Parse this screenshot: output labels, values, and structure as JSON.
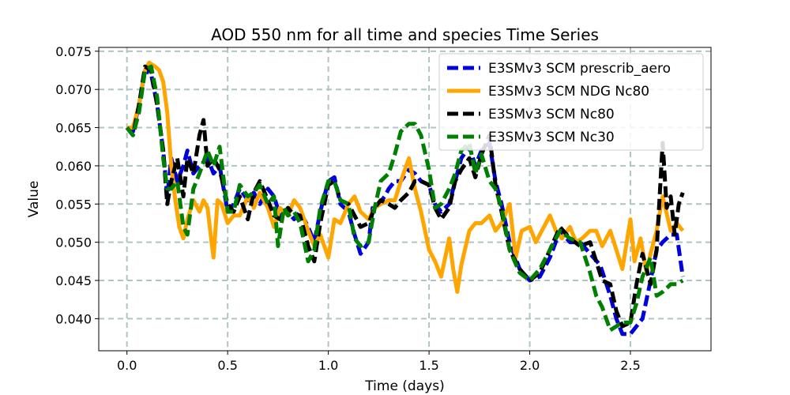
{
  "chart_data": {
    "type": "line",
    "title": "AOD 550 nm for all time and species Time Series",
    "xlabel": "Time (days)",
    "ylabel": "Value",
    "xlim": [
      -0.14,
      2.9
    ],
    "ylim": [
      0.0358,
      0.0755
    ],
    "xticks": [
      0.0,
      0.5,
      1.0,
      1.5,
      2.0,
      2.5
    ],
    "xtick_labels": [
      "0.0",
      "0.5",
      "1.0",
      "1.5",
      "2.0",
      "2.5"
    ],
    "yticks": [
      0.04,
      0.045,
      0.05,
      0.055,
      0.06,
      0.065,
      0.07,
      0.075
    ],
    "ytick_labels": [
      "0.040",
      "0.045",
      "0.050",
      "0.055",
      "0.060",
      "0.065",
      "0.070",
      "0.075"
    ],
    "grid": true,
    "legend_position": "top-right",
    "series": [
      {
        "name": "E3SMv3 SCM prescrib_aero",
        "color": "#0000dd",
        "dashed": true,
        "x": [
          0.0,
          0.03,
          0.06,
          0.09,
          0.12,
          0.15,
          0.18,
          0.2,
          0.22,
          0.25,
          0.28,
          0.3,
          0.33,
          0.36,
          0.4,
          0.43,
          0.46,
          0.5,
          0.53,
          0.56,
          0.6,
          0.63,
          0.66,
          0.7,
          0.73,
          0.76,
          0.8,
          0.83,
          0.86,
          0.9,
          0.93,
          0.96,
          1.0,
          1.03,
          1.06,
          1.1,
          1.13,
          1.16,
          1.2,
          1.22,
          1.25,
          1.28,
          1.3,
          1.33,
          1.36,
          1.4,
          1.43,
          1.46,
          1.5,
          1.53,
          1.56,
          1.6,
          1.63,
          1.66,
          1.7,
          1.73,
          1.76,
          1.8,
          1.83,
          1.86,
          1.9,
          1.95,
          2.0,
          2.05,
          2.1,
          2.15,
          2.2,
          2.25,
          2.3,
          2.35,
          2.4,
          2.43,
          2.46,
          2.5,
          2.53,
          2.56,
          2.6,
          2.63,
          2.66,
          2.7,
          2.73,
          2.76
        ],
        "y": [
          0.065,
          0.0645,
          0.068,
          0.0725,
          0.072,
          0.068,
          0.062,
          0.056,
          0.061,
          0.058,
          0.06,
          0.062,
          0.059,
          0.06,
          0.061,
          0.059,
          0.06,
          0.054,
          0.055,
          0.057,
          0.0555,
          0.0565,
          0.055,
          0.057,
          0.056,
          0.0535,
          0.054,
          0.053,
          0.054,
          0.052,
          0.05,
          0.054,
          0.058,
          0.0585,
          0.055,
          0.054,
          0.051,
          0.0485,
          0.05,
          0.0545,
          0.055,
          0.056,
          0.057,
          0.058,
          0.058,
          0.0595,
          0.059,
          0.058,
          0.0575,
          0.055,
          0.054,
          0.055,
          0.058,
          0.061,
          0.0625,
          0.06,
          0.062,
          0.063,
          0.058,
          0.055,
          0.05,
          0.0465,
          0.045,
          0.0455,
          0.048,
          0.0515,
          0.05,
          0.05,
          0.0485,
          0.047,
          0.043,
          0.04,
          0.038,
          0.038,
          0.039,
          0.04,
          0.045,
          0.049,
          0.05,
          0.051,
          0.051,
          0.0455
        ]
      },
      {
        "name": "E3SMv3 SCM NDG Nc80",
        "color": "#ffa500",
        "dashed": false,
        "x": [
          0.0,
          0.03,
          0.06,
          0.09,
          0.11,
          0.14,
          0.16,
          0.18,
          0.2,
          0.22,
          0.24,
          0.26,
          0.28,
          0.3,
          0.33,
          0.36,
          0.38,
          0.4,
          0.42,
          0.43,
          0.45,
          0.47,
          0.5,
          0.53,
          0.56,
          0.6,
          0.63,
          0.66,
          0.7,
          0.73,
          0.76,
          0.8,
          0.83,
          0.86,
          0.9,
          0.93,
          0.96,
          1.0,
          1.03,
          1.06,
          1.1,
          1.13,
          1.16,
          1.2,
          1.23,
          1.26,
          1.3,
          1.33,
          1.36,
          1.4,
          1.43,
          1.46,
          1.5,
          1.53,
          1.56,
          1.6,
          1.62,
          1.64,
          1.66,
          1.7,
          1.73,
          1.76,
          1.8,
          1.83,
          1.86,
          1.9,
          1.93,
          1.96,
          2.0,
          2.03,
          2.06,
          2.1,
          2.13,
          2.16,
          2.2,
          2.23,
          2.26,
          2.3,
          2.33,
          2.36,
          2.4,
          2.43,
          2.46,
          2.5,
          2.52,
          2.55,
          2.58,
          2.6,
          2.63,
          2.66,
          2.7,
          2.73,
          2.76
        ],
        "y": [
          0.065,
          0.065,
          0.068,
          0.0725,
          0.0735,
          0.073,
          0.0725,
          0.071,
          0.067,
          0.06,
          0.0555,
          0.052,
          0.0505,
          0.053,
          0.0555,
          0.054,
          0.0555,
          0.0545,
          0.05,
          0.048,
          0.0555,
          0.055,
          0.0525,
          0.0535,
          0.0535,
          0.056,
          0.0545,
          0.0565,
          0.0545,
          0.052,
          0.0545,
          0.0535,
          0.0555,
          0.0545,
          0.0515,
          0.0495,
          0.051,
          0.048,
          0.053,
          0.0525,
          0.055,
          0.056,
          0.054,
          0.053,
          0.0545,
          0.055,
          0.0555,
          0.0555,
          0.058,
          0.061,
          0.057,
          0.054,
          0.049,
          0.0475,
          0.0455,
          0.0505,
          0.0465,
          0.0435,
          0.047,
          0.0515,
          0.0525,
          0.0525,
          0.0535,
          0.0515,
          0.0525,
          0.055,
          0.048,
          0.0515,
          0.052,
          0.05,
          0.0515,
          0.0535,
          0.0515,
          0.0505,
          0.052,
          0.05,
          0.0505,
          0.0515,
          0.0515,
          0.0495,
          0.0515,
          0.049,
          0.0465,
          0.053,
          0.0475,
          0.0505,
          0.046,
          0.0485,
          0.0515,
          0.056,
          0.0515,
          0.0525,
          0.0515
        ]
      },
      {
        "name": "E3SMv3 SCM Nc80",
        "color": "#000000",
        "dashed": true,
        "x": [
          0.0,
          0.03,
          0.06,
          0.09,
          0.12,
          0.15,
          0.18,
          0.2,
          0.22,
          0.25,
          0.28,
          0.3,
          0.33,
          0.36,
          0.38,
          0.4,
          0.43,
          0.46,
          0.5,
          0.53,
          0.56,
          0.6,
          0.63,
          0.66,
          0.7,
          0.73,
          0.76,
          0.8,
          0.83,
          0.86,
          0.9,
          0.93,
          0.96,
          1.0,
          1.03,
          1.06,
          1.1,
          1.13,
          1.16,
          1.2,
          1.23,
          1.26,
          1.3,
          1.33,
          1.36,
          1.4,
          1.43,
          1.46,
          1.5,
          1.53,
          1.56,
          1.6,
          1.63,
          1.66,
          1.7,
          1.73,
          1.76,
          1.8,
          1.83,
          1.86,
          1.9,
          1.95,
          2.0,
          2.05,
          2.1,
          2.15,
          2.2,
          2.25,
          2.3,
          2.33,
          2.36,
          2.4,
          2.43,
          2.46,
          2.5,
          2.53,
          2.56,
          2.6,
          2.63,
          2.66,
          2.68,
          2.7,
          2.72,
          2.74,
          2.76
        ],
        "y": [
          0.065,
          0.064,
          0.068,
          0.073,
          0.0725,
          0.068,
          0.062,
          0.055,
          0.058,
          0.061,
          0.056,
          0.061,
          0.059,
          0.064,
          0.066,
          0.06,
          0.061,
          0.0595,
          0.055,
          0.054,
          0.056,
          0.053,
          0.0565,
          0.058,
          0.0555,
          0.0535,
          0.053,
          0.0545,
          0.0535,
          0.0535,
          0.0495,
          0.0475,
          0.0525,
          0.0575,
          0.058,
          0.0555,
          0.055,
          0.0535,
          0.052,
          0.0525,
          0.0545,
          0.0555,
          0.055,
          0.0545,
          0.0555,
          0.0565,
          0.058,
          0.058,
          0.0575,
          0.0545,
          0.053,
          0.0545,
          0.058,
          0.0595,
          0.061,
          0.0585,
          0.0615,
          0.064,
          0.0575,
          0.054,
          0.049,
          0.0465,
          0.045,
          0.046,
          0.049,
          0.052,
          0.0505,
          0.0495,
          0.05,
          0.0475,
          0.045,
          0.0445,
          0.041,
          0.039,
          0.0395,
          0.0445,
          0.0485,
          0.0445,
          0.049,
          0.063,
          0.0545,
          0.056,
          0.051,
          0.055,
          0.0565
        ]
      },
      {
        "name": "E3SMv3 SCM Nc30",
        "color": "#008000",
        "dashed": true,
        "x": [
          0.0,
          0.03,
          0.06,
          0.09,
          0.12,
          0.15,
          0.18,
          0.2,
          0.22,
          0.25,
          0.28,
          0.3,
          0.33,
          0.36,
          0.4,
          0.43,
          0.46,
          0.5,
          0.53,
          0.56,
          0.6,
          0.63,
          0.66,
          0.7,
          0.73,
          0.75,
          0.78,
          0.8,
          0.83,
          0.86,
          0.9,
          0.93,
          0.96,
          1.0,
          1.03,
          1.06,
          1.1,
          1.13,
          1.16,
          1.2,
          1.23,
          1.26,
          1.3,
          1.33,
          1.36,
          1.4,
          1.43,
          1.46,
          1.5,
          1.53,
          1.56,
          1.6,
          1.63,
          1.66,
          1.7,
          1.73,
          1.76,
          1.8,
          1.83,
          1.86,
          1.9,
          1.95,
          2.0,
          2.05,
          2.1,
          2.15,
          2.2,
          2.25,
          2.3,
          2.33,
          2.36,
          2.4,
          2.43,
          2.46,
          2.5,
          2.53,
          2.56,
          2.6,
          2.63,
          2.66,
          2.7,
          2.73,
          2.76
        ],
        "y": [
          0.065,
          0.064,
          0.067,
          0.0725,
          0.073,
          0.069,
          0.061,
          0.057,
          0.057,
          0.058,
          0.052,
          0.051,
          0.057,
          0.059,
          0.062,
          0.06,
          0.0625,
          0.054,
          0.054,
          0.0575,
          0.056,
          0.0565,
          0.0575,
          0.055,
          0.056,
          0.0495,
          0.0545,
          0.0535,
          0.054,
          0.0525,
          0.0475,
          0.049,
          0.0545,
          0.058,
          0.058,
          0.0555,
          0.055,
          0.0505,
          0.0495,
          0.05,
          0.0545,
          0.058,
          0.059,
          0.0615,
          0.0645,
          0.0655,
          0.0655,
          0.064,
          0.0595,
          0.0545,
          0.055,
          0.057,
          0.059,
          0.062,
          0.063,
          0.059,
          0.0615,
          0.058,
          0.057,
          0.0545,
          0.049,
          0.046,
          0.045,
          0.0465,
          0.049,
          0.0515,
          0.0505,
          0.05,
          0.046,
          0.043,
          0.0415,
          0.0385,
          0.039,
          0.0395,
          0.0395,
          0.042,
          0.0455,
          0.048,
          0.043,
          0.0435,
          0.0445,
          0.0445,
          0.045
        ]
      }
    ]
  }
}
